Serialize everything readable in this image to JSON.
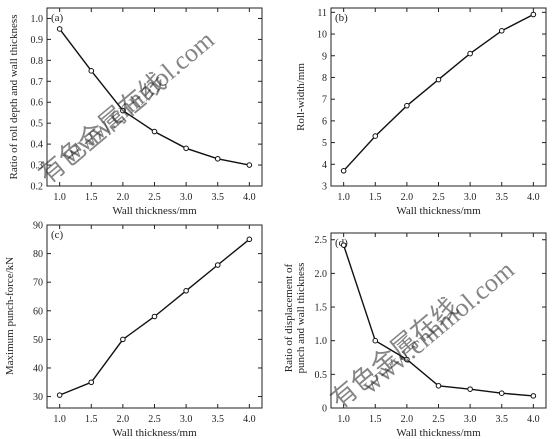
{
  "chart_data": [
    {
      "type": "line",
      "panel_label": "(a)",
      "xlabel": "Wall thickness/mm",
      "ylabel_lines": [
        "Ratio of roll depth and wall thickness"
      ],
      "x": [
        1.0,
        1.5,
        2.0,
        2.5,
        3.0,
        3.5,
        4.0
      ],
      "y": [
        0.95,
        0.75,
        0.56,
        0.46,
        0.38,
        0.33,
        0.3
      ],
      "xlim": [
        0.8,
        4.2
      ],
      "ylim": [
        0.2,
        1.05
      ],
      "xticks": [
        "1.0",
        "1.5",
        "2.0",
        "2.5",
        "3.0",
        "3.5",
        "4.0"
      ],
      "yticks": [
        "0.2",
        "0.3",
        "0.4",
        "0.5",
        "0.6",
        "0.7",
        "0.8",
        "0.9",
        "1.0"
      ],
      "ytick_values": [
        0.2,
        0.3,
        0.4,
        0.5,
        0.6,
        0.7,
        0.8,
        0.9,
        1.0
      ]
    },
    {
      "type": "line",
      "panel_label": "(b)",
      "xlabel": "Wall thickness/mm",
      "ylabel_lines": [
        "Roll-width/mm"
      ],
      "x": [
        1.0,
        1.5,
        2.0,
        2.5,
        3.0,
        3.5,
        4.0
      ],
      "y": [
        3.7,
        5.3,
        6.7,
        7.9,
        9.1,
        10.15,
        10.9
      ],
      "xlim": [
        0.8,
        4.2
      ],
      "ylim": [
        3,
        11.2
      ],
      "xticks": [
        "1.0",
        "1.5",
        "2.0",
        "2.5",
        "3.0",
        "3.5",
        "4.0"
      ],
      "yticks": [
        "3",
        "4",
        "5",
        "6",
        "7",
        "8",
        "9",
        "10",
        "11"
      ],
      "ytick_values": [
        3,
        4,
        5,
        6,
        7,
        8,
        9,
        10,
        11
      ]
    },
    {
      "type": "line",
      "panel_label": "(c)",
      "xlabel": "Wall thickness/mm",
      "ylabel_lines": [
        "Maximum punch-force/kN"
      ],
      "x": [
        1.0,
        1.5,
        2.0,
        2.5,
        3.0,
        3.5,
        4.0
      ],
      "y": [
        30.5,
        35,
        50,
        58,
        67,
        76,
        85
      ],
      "xlim": [
        0.8,
        4.2
      ],
      "ylim": [
        26,
        90
      ],
      "xticks": [
        "1.0",
        "1.5",
        "2.0",
        "2.5",
        "3.0",
        "3.5",
        "4.0"
      ],
      "yticks": [
        "30",
        "40",
        "50",
        "60",
        "70",
        "80",
        "90"
      ],
      "ytick_values": [
        30,
        40,
        50,
        60,
        70,
        80,
        90
      ]
    },
    {
      "type": "line",
      "panel_label": "(d)",
      "xlabel": "Wall thickness/mm",
      "ylabel_lines": [
        "Ratio of displacement of",
        "punch and wall thickness"
      ],
      "x": [
        1.0,
        1.5,
        2.0,
        2.5,
        3.0,
        3.5,
        4.0
      ],
      "y": [
        2.42,
        1.0,
        0.72,
        0.33,
        0.28,
        0.22,
        0.18
      ],
      "xlim": [
        0.8,
        4.2
      ],
      "ylim": [
        0,
        2.6
      ],
      "xticks": [
        "1.0",
        "1.5",
        "2.0",
        "2.5",
        "3.0",
        "3.5",
        "4.0"
      ],
      "yticks": [
        "0",
        "0.5",
        "1.0",
        "1.5",
        "2.0",
        "2.5"
      ],
      "ytick_values": [
        0,
        0.5,
        1.0,
        1.5,
        2.0,
        2.5
      ]
    }
  ],
  "watermark": {
    "zh": "有色金属在线",
    "site": "www.cnnmol.com"
  }
}
